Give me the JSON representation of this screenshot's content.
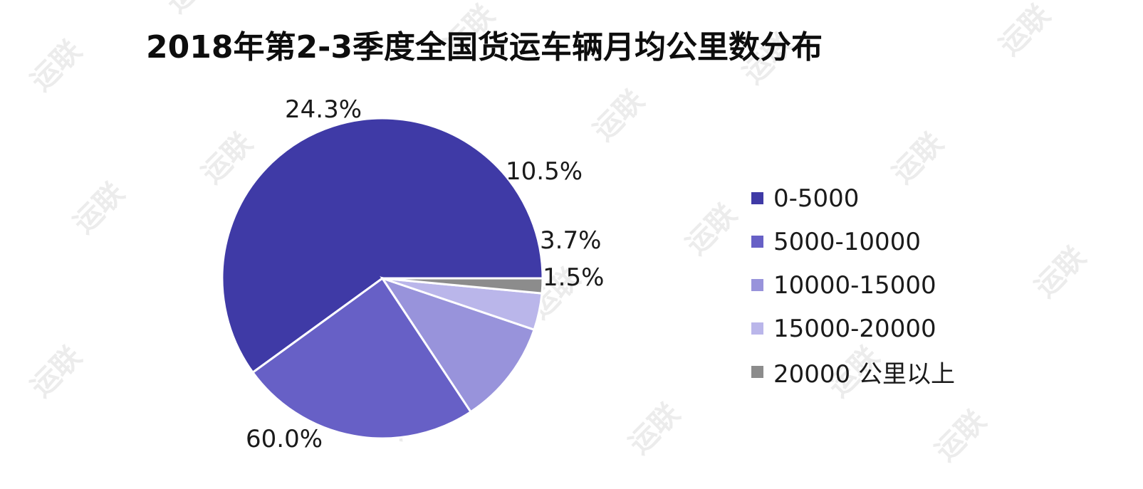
{
  "chart_data": {
    "type": "pie",
    "title": "2018年第2-3季度全国货运车辆月均公里数分布",
    "slices": [
      {
        "label": "0-5000",
        "value": 60.0,
        "display": "60.0%",
        "color": "#3f3aa6"
      },
      {
        "label": "5000-10000",
        "value": 24.3,
        "display": "24.3%",
        "color": "#6760c6"
      },
      {
        "label": "10000-15000",
        "value": 10.5,
        "display": "10.5%",
        "color": "#9893db"
      },
      {
        "label": "15000-20000",
        "value": 3.7,
        "display": "3.7%",
        "color": "#bab6ea"
      },
      {
        "label": "20000 公里以上",
        "value": 1.5,
        "display": "1.5%",
        "color": "#8c8c8c"
      }
    ],
    "legend_position": "right"
  },
  "watermark": {
    "text": "运联",
    "color": "#ececec"
  }
}
